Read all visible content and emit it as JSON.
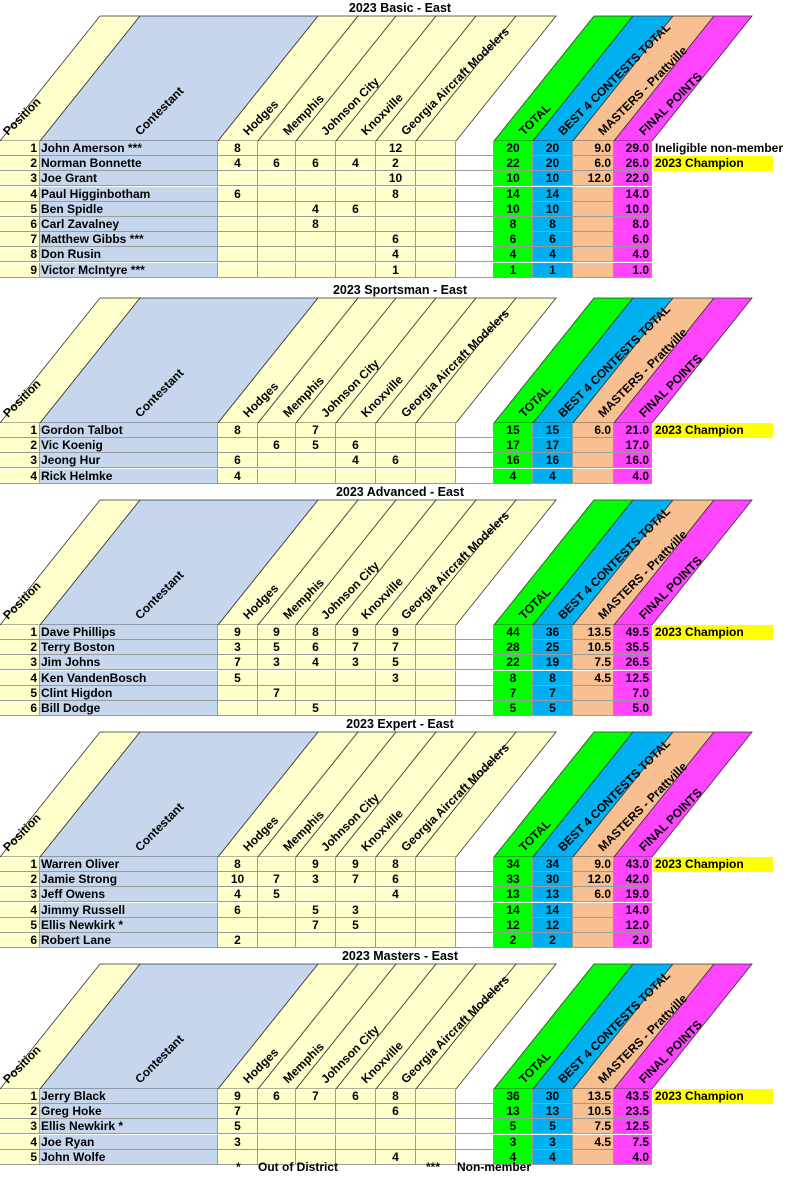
{
  "colors": {
    "position_bg": "#ffffcc",
    "contestant_bg": "#c6d6ec",
    "contest_bg": "#ffffcc",
    "total_bg": "#00ff00",
    "best4_bg": "#00b0f0",
    "masters_bg": "#f8c090",
    "final_bg": "#ff44ff",
    "champion_bg": "#ffff00"
  },
  "headers": {
    "position": "Position",
    "contestant": "Contestant",
    "contests": [
      "Hodges",
      "Memphis",
      "Johnson City",
      "Knoxville",
      "Georgia Aircraft Modelers",
      ""
    ],
    "total": "TOTAL",
    "best4": "BEST 4 CONTESTS TOTAL",
    "masters": "MASTERS - Prattville",
    "final": "FINAL POINTS"
  },
  "sections": [
    {
      "title": "2023 Basic - East",
      "rows": [
        {
          "pos": "1",
          "name": "John Amerson   ***",
          "scores": [
            "8",
            "",
            "",
            "",
            "12",
            ""
          ],
          "total": "20",
          "best4": "20",
          "masters": "9.0",
          "final": "29.0",
          "note": "Ineligible non-member",
          "note_highlight": false
        },
        {
          "pos": "2",
          "name": "Norman Bonnette",
          "scores": [
            "4",
            "6",
            "6",
            "4",
            "2",
            ""
          ],
          "total": "22",
          "best4": "20",
          "masters": "6.0",
          "final": "26.0",
          "note": "2023 Champion",
          "note_highlight": true
        },
        {
          "pos": "3",
          "name": "Joe Grant",
          "scores": [
            "",
            "",
            "",
            "",
            "10",
            ""
          ],
          "total": "10",
          "best4": "10",
          "masters": "12.0",
          "final": "22.0",
          "note": "",
          "note_highlight": false
        },
        {
          "pos": "4",
          "name": "Paul Higginbotham",
          "scores": [
            "6",
            "",
            "",
            "",
            "8",
            ""
          ],
          "total": "14",
          "best4": "14",
          "masters": "",
          "final": "14.0",
          "note": "",
          "note_highlight": false
        },
        {
          "pos": "5",
          "name": "Ben Spidle",
          "scores": [
            "",
            "",
            "4",
            "6",
            "",
            ""
          ],
          "total": "10",
          "best4": "10",
          "masters": "",
          "final": "10.0",
          "note": "",
          "note_highlight": false
        },
        {
          "pos": "6",
          "name": "Carl Zavalney",
          "scores": [
            "",
            "",
            "8",
            "",
            "",
            ""
          ],
          "total": "8",
          "best4": "8",
          "masters": "",
          "final": "8.0",
          "note": "",
          "note_highlight": false
        },
        {
          "pos": "7",
          "name": "Matthew Gibbs   ***",
          "scores": [
            "",
            "",
            "",
            "",
            "6",
            ""
          ],
          "total": "6",
          "best4": "6",
          "masters": "",
          "final": "6.0",
          "note": "",
          "note_highlight": false
        },
        {
          "pos": "8",
          "name": "Don Rusin",
          "scores": [
            "",
            "",
            "",
            "",
            "4",
            ""
          ],
          "total": "4",
          "best4": "4",
          "masters": "",
          "final": "4.0",
          "note": "",
          "note_highlight": false
        },
        {
          "pos": "9",
          "name": "Victor McIntyre    ***",
          "scores": [
            "",
            "",
            "",
            "",
            "1",
            ""
          ],
          "total": "1",
          "best4": "1",
          "masters": "",
          "final": "1.0",
          "note": "",
          "note_highlight": false
        }
      ]
    },
    {
      "title": "2023 Sportsman - East",
      "rows": [
        {
          "pos": "1",
          "name": "Gordon Talbot",
          "scores": [
            "8",
            "",
            "7",
            "",
            "",
            ""
          ],
          "total": "15",
          "best4": "15",
          "masters": "6.0",
          "final": "21.0",
          "note": "2023 Champion",
          "note_highlight": true
        },
        {
          "pos": "2",
          "name": "Vic Koenig",
          "scores": [
            "",
            "6",
            "5",
            "6",
            "",
            ""
          ],
          "total": "17",
          "best4": "17",
          "masters": "",
          "final": "17.0",
          "note": "",
          "note_highlight": false
        },
        {
          "pos": "3",
          "name": "Jeong Hur",
          "scores": [
            "6",
            "",
            "",
            "4",
            "6",
            ""
          ],
          "total": "16",
          "best4": "16",
          "masters": "",
          "final": "16.0",
          "note": "",
          "note_highlight": false
        },
        {
          "pos": "4",
          "name": "Rick Helmke",
          "scores": [
            "4",
            "",
            "",
            "",
            "",
            ""
          ],
          "total": "4",
          "best4": "4",
          "masters": "",
          "final": "4.0",
          "note": "",
          "note_highlight": false
        }
      ]
    },
    {
      "title": "2023 Advanced - East",
      "rows": [
        {
          "pos": "1",
          "name": "Dave Phillips",
          "scores": [
            "9",
            "9",
            "8",
            "9",
            "9",
            ""
          ],
          "total": "44",
          "best4": "36",
          "masters": "13.5",
          "final": "49.5",
          "note": "2023 Champion",
          "note_highlight": true
        },
        {
          "pos": "2",
          "name": "Terry Boston",
          "scores": [
            "3",
            "5",
            "6",
            "7",
            "7",
            ""
          ],
          "total": "28",
          "best4": "25",
          "masters": "10.5",
          "final": "35.5",
          "note": "",
          "note_highlight": false
        },
        {
          "pos": "3",
          "name": "Jim Johns",
          "scores": [
            "7",
            "3",
            "4",
            "3",
            "5",
            ""
          ],
          "total": "22",
          "best4": "19",
          "masters": "7.5",
          "final": "26.5",
          "note": "",
          "note_highlight": false
        },
        {
          "pos": "4",
          "name": "Ken VandenBosch",
          "scores": [
            "5",
            "",
            "",
            "",
            "3",
            ""
          ],
          "total": "8",
          "best4": "8",
          "masters": "4.5",
          "final": "12.5",
          "note": "",
          "note_highlight": false
        },
        {
          "pos": "5",
          "name": "Clint Higdon",
          "scores": [
            "",
            "7",
            "",
            "",
            "",
            ""
          ],
          "total": "7",
          "best4": "7",
          "masters": "",
          "final": "7.0",
          "note": "",
          "note_highlight": false
        },
        {
          "pos": "6",
          "name": "Bill Dodge",
          "scores": [
            "",
            "",
            "5",
            "",
            "",
            ""
          ],
          "total": "5",
          "best4": "5",
          "masters": "",
          "final": "5.0",
          "note": "",
          "note_highlight": false
        }
      ]
    },
    {
      "title": "2023 Expert - East",
      "rows": [
        {
          "pos": "1",
          "name": "Warren Oliver",
          "scores": [
            "8",
            "",
            "9",
            "9",
            "8",
            ""
          ],
          "total": "34",
          "best4": "34",
          "masters": "9.0",
          "final": "43.0",
          "note": "2023 Champion",
          "note_highlight": true
        },
        {
          "pos": "2",
          "name": "Jamie Strong",
          "scores": [
            "10",
            "7",
            "3",
            "7",
            "6",
            ""
          ],
          "total": "33",
          "best4": "30",
          "masters": "12.0",
          "final": "42.0",
          "note": "",
          "note_highlight": false
        },
        {
          "pos": "3",
          "name": "Jeff Owens",
          "scores": [
            "4",
            "5",
            "",
            "",
            "4",
            ""
          ],
          "total": "13",
          "best4": "13",
          "masters": "6.0",
          "final": "19.0",
          "note": "",
          "note_highlight": false
        },
        {
          "pos": "4",
          "name": "Jimmy Russell",
          "scores": [
            "6",
            "",
            "5",
            "3",
            "",
            ""
          ],
          "total": "14",
          "best4": "14",
          "masters": "",
          "final": "14.0",
          "note": "",
          "note_highlight": false
        },
        {
          "pos": "5",
          "name": "Ellis Newkirk  *",
          "scores": [
            "",
            "",
            "7",
            "5",
            "",
            ""
          ],
          "total": "12",
          "best4": "12",
          "masters": "",
          "final": "12.0",
          "note": "",
          "note_highlight": false
        },
        {
          "pos": "6",
          "name": "Robert Lane",
          "scores": [
            "2",
            "",
            "",
            "",
            "",
            ""
          ],
          "total": "2",
          "best4": "2",
          "masters": "",
          "final": "2.0",
          "note": "",
          "note_highlight": false
        }
      ]
    },
    {
      "title": "2023 Masters - East",
      "rows": [
        {
          "pos": "1",
          "name": "Jerry Black",
          "scores": [
            "9",
            "6",
            "7",
            "6",
            "8",
            ""
          ],
          "total": "36",
          "best4": "30",
          "masters": "13.5",
          "final": "43.5",
          "note": "2023 Champion",
          "note_highlight": true
        },
        {
          "pos": "2",
          "name": "Greg Hoke",
          "scores": [
            "7",
            "",
            "",
            "",
            "6",
            ""
          ],
          "total": "13",
          "best4": "13",
          "masters": "10.5",
          "final": "23.5",
          "note": "",
          "note_highlight": false
        },
        {
          "pos": "3",
          "name": "Ellis Newkirk  *",
          "scores": [
            "5",
            "",
            "",
            "",
            "",
            ""
          ],
          "total": "5",
          "best4": "5",
          "masters": "7.5",
          "final": "12.5",
          "note": "",
          "note_highlight": false
        },
        {
          "pos": "4",
          "name": "Joe Ryan",
          "scores": [
            "3",
            "",
            "",
            "",
            "",
            ""
          ],
          "total": "3",
          "best4": "3",
          "masters": "4.5",
          "final": "7.5",
          "note": "",
          "note_highlight": false
        },
        {
          "pos": "5",
          "name": "John Wolfe",
          "scores": [
            "",
            "",
            "",
            "",
            "4",
            ""
          ],
          "total": "4",
          "best4": "4",
          "masters": "",
          "final": "4.0",
          "note": "",
          "note_highlight": false
        }
      ]
    }
  ],
  "footer": {
    "out_symbol": "*",
    "out_label": "Out of District",
    "non_symbol": "***",
    "non_label": "Non-member"
  }
}
